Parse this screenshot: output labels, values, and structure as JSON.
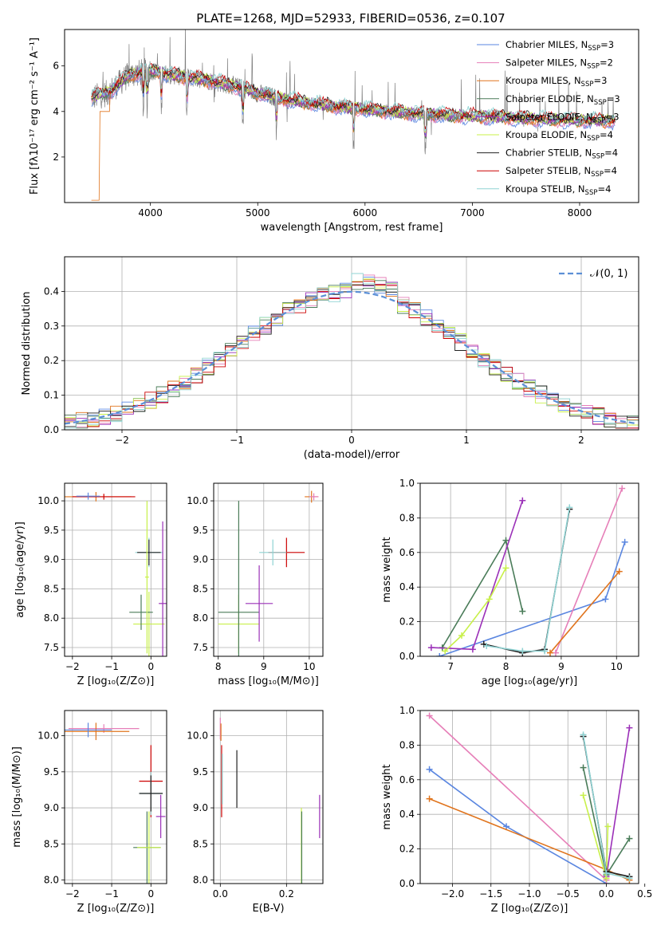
{
  "colors": {
    "chabrier_miles": "#5a86e0",
    "salpeter_miles": "#e67fb8",
    "kroupa_miles": "#e0741d",
    "chabrier_elodie": "#4a7c59",
    "salpeter_elodie": "#9b30b8",
    "kroupa_elodie": "#c8f04a",
    "chabrier_stelib": "#222222",
    "salpeter_stelib": "#cc0000",
    "kroupa_stelib": "#8fd3d3",
    "data": "#7f7f7f",
    "gaussian": "#5b8fd6"
  },
  "chart_data": [
    {
      "type": "line",
      "title": "PLATE=1268, MJD=52933, FIBERID=0536, z=0.107",
      "xlabel": "wavelength [Angstrom, rest frame]",
      "ylabel": "Flux [fλ10⁻¹⁷ erg cm⁻² s⁻¹ A⁻¹]",
      "xlim": [
        3200,
        8550
      ],
      "ylim": [
        0,
        7.6
      ],
      "xticks": [
        "4000",
        "5000",
        "6000",
        "7000",
        "8000"
      ],
      "yticks": [
        "2",
        "4",
        "6"
      ],
      "legend": "top-right",
      "continuum": {
        "x": [
          3450,
          3600,
          3800,
          4000,
          4200,
          4500,
          4800,
          5000,
          5300,
          5600,
          6000,
          6500,
          7000,
          7500,
          8000,
          8300
        ],
        "y": [
          4.6,
          4.8,
          5.6,
          5.8,
          5.6,
          5.4,
          5.1,
          4.8,
          4.5,
          4.3,
          4.1,
          3.9,
          3.8,
          3.7,
          3.6,
          3.6
        ]
      },
      "series": [
        {
          "name": "Chabrier MILES, N",
          "sub": "SSP",
          "suffix": "=3",
          "color_key": "chabrier_miles"
        },
        {
          "name": "Salpeter MILES, N",
          "sub": "SSP",
          "suffix": "=2",
          "color_key": "salpeter_miles"
        },
        {
          "name": "Kroupa MILES, N",
          "sub": "SSP",
          "suffix": "=3",
          "color_key": "kroupa_miles"
        },
        {
          "name": "Chabrier ELODIE, N",
          "sub": "SSP",
          "suffix": "=3",
          "color_key": "chabrier_elodie"
        },
        {
          "name": "Salpeter ELODIE, N",
          "sub": "SSP",
          "suffix": "=3",
          "color_key": "salpeter_elodie"
        },
        {
          "name": "Kroupa ELODIE, N",
          "sub": "SSP",
          "suffix": "=4",
          "color_key": "kroupa_elodie"
        },
        {
          "name": "Chabrier STELIB, N",
          "sub": "SSP",
          "suffix": "=4",
          "color_key": "chabrier_stelib"
        },
        {
          "name": "Salpeter STELIB, N",
          "sub": "SSP",
          "suffix": "=4",
          "color_key": "salpeter_stelib"
        },
        {
          "name": "Kroupa STELIB, N",
          "sub": "SSP",
          "suffix": "=4",
          "color_key": "kroupa_stelib"
        }
      ]
    },
    {
      "type": "bar",
      "xlabel": "(data-model)/error",
      "ylabel": "Normed distribution",
      "xlim": [
        -2.5,
        2.5
      ],
      "ylim": [
        0,
        0.5
      ],
      "xticks": [
        "−2",
        "−1",
        "0",
        "1",
        "2"
      ],
      "yticks": [
        "0.0",
        "0.1",
        "0.2",
        "0.3",
        "0.4"
      ],
      "grid": true,
      "legend": "top-right",
      "legend_label": "𝒩(0, 1)",
      "bin_width": 0.1
    },
    {
      "type": "scatter",
      "xlabel": "Z [log₁₀(Z/Z⊙)]",
      "ylabel": "age  [log₁₀(age/yr)]",
      "xlim": [
        -2.2,
        0.4
      ],
      "ylim": [
        7.35,
        10.3
      ],
      "xticks": [
        "−2",
        "−1",
        "0"
      ],
      "yticks": [
        "7.5",
        "8.0",
        "8.5",
        "9.0",
        "9.5",
        "10.0"
      ],
      "grid": true,
      "points": [
        {
          "x": -1.4,
          "y": 10.07,
          "xerr": 0.9,
          "yerr": 0.08,
          "color_key": "kroupa_miles"
        },
        {
          "x": -1.2,
          "y": 10.07,
          "xerr": 0.8,
          "yerr": 0.05,
          "color_key": "salpeter_stelib"
        },
        {
          "x": -1.6,
          "y": 10.08,
          "xerr": 0.3,
          "yerr": 0.06,
          "color_key": "chabrier_miles"
        },
        {
          "x": -0.05,
          "y": 9.12,
          "xerr": 0.35,
          "yerr": 0.25,
          "color_key": "kroupa_stelib"
        },
        {
          "x": -0.05,
          "y": 9.12,
          "xerr": 0.3,
          "yerr": 0.22,
          "color_key": "chabrier_stelib"
        },
        {
          "x": -0.05,
          "y": 7.9,
          "xerr": 0.4,
          "yerr": 0.55,
          "color_key": "kroupa_elodie"
        },
        {
          "x": -0.25,
          "y": 8.1,
          "xerr": 0.3,
          "yerr": 0.3,
          "color_key": "chabrier_elodie"
        },
        {
          "x": 0.3,
          "y": 8.25,
          "xerr": 0.1,
          "yerr": 1.4,
          "color_key": "salpeter_elodie"
        },
        {
          "x": -0.1,
          "y": 8.7,
          "xerr": 0.05,
          "yerr": 1.3,
          "color_key": "kroupa_elodie"
        }
      ]
    },
    {
      "type": "scatter",
      "xlabel": "mass [log₁₀(M/M⊙)]",
      "ylabel": "",
      "xlim": [
        7.9,
        10.3
      ],
      "ylim": [
        7.35,
        10.3
      ],
      "xticks": [
        "8",
        "9",
        "10"
      ],
      "yticks": [
        "7.5",
        "8.0",
        "8.5",
        "9.0",
        "9.5",
        "10.0"
      ],
      "grid": true,
      "points": [
        {
          "x": 10.05,
          "y": 10.07,
          "xerr": 0.15,
          "yerr": 0.1,
          "color_key": "kroupa_miles"
        },
        {
          "x": 10.1,
          "y": 10.07,
          "xerr": 0.1,
          "yerr": 0.06,
          "color_key": "salpeter_miles"
        },
        {
          "x": 9.5,
          "y": 9.12,
          "xerr": 0.4,
          "yerr": 0.25,
          "color_key": "salpeter_stelib"
        },
        {
          "x": 9.2,
          "y": 9.12,
          "xerr": 0.3,
          "yerr": 0.22,
          "color_key": "kroupa_stelib"
        },
        {
          "x": 8.45,
          "y": 7.9,
          "xerr": 0.45,
          "yerr": 0.5,
          "color_key": "kroupa_elodie"
        },
        {
          "x": 8.45,
          "y": 8.1,
          "xerr": 0.45,
          "yerr": 1.9,
          "color_key": "chabrier_elodie"
        },
        {
          "x": 8.9,
          "y": 8.25,
          "xerr": 0.3,
          "yerr": 0.65,
          "color_key": "salpeter_elodie"
        }
      ]
    },
    {
      "type": "line",
      "xlabel": "age  [log₁₀(age/yr)]",
      "ylabel": "mass weight",
      "xlim": [
        6.45,
        10.4
      ],
      "ylim": [
        0,
        1.0
      ],
      "xticks": [
        "7",
        "8",
        "9",
        "10"
      ],
      "yticks": [
        "0.0",
        "0.2",
        "0.4",
        "0.6",
        "0.8",
        "1.0"
      ],
      "grid": true,
      "series": [
        {
          "color_key": "chabrier_miles",
          "x": [
            6.8,
            9.8,
            10.15
          ],
          "y": [
            0.0,
            0.33,
            0.66
          ]
        },
        {
          "color_key": "salpeter_miles",
          "x": [
            8.9,
            10.1
          ],
          "y": [
            0.02,
            0.97
          ]
        },
        {
          "color_key": "kroupa_miles",
          "x": [
            8.8,
            10.05
          ],
          "y": [
            0.02,
            0.49
          ]
        },
        {
          "color_key": "chabrier_elodie",
          "x": [
            6.85,
            8.0,
            8.3
          ],
          "y": [
            0.05,
            0.67,
            0.26
          ]
        },
        {
          "color_key": "salpeter_elodie",
          "x": [
            6.65,
            7.4,
            8.3
          ],
          "y": [
            0.05,
            0.04,
            0.9
          ]
        },
        {
          "color_key": "kroupa_elodie",
          "x": [
            6.9,
            7.2,
            7.7,
            8.0
          ],
          "y": [
            0.03,
            0.12,
            0.33,
            0.51
          ]
        },
        {
          "color_key": "chabrier_stelib",
          "x": [
            7.6,
            8.3,
            8.7,
            9.15
          ],
          "y": [
            0.07,
            0.02,
            0.04,
            0.85
          ]
        },
        {
          "color_key": "kroupa_stelib",
          "x": [
            7.65,
            8.3,
            8.7,
            9.15
          ],
          "y": [
            0.06,
            0.03,
            0.03,
            0.86
          ]
        }
      ]
    },
    {
      "type": "scatter",
      "xlabel": "Z [log₁₀(Z/Z⊙)]",
      "ylabel": "mass [log₁₀(M/M⊙)]",
      "xlim": [
        -2.2,
        0.4
      ],
      "ylim": [
        7.95,
        10.35
      ],
      "xticks": [
        "−2",
        "−1",
        "0"
      ],
      "yticks": [
        "8.0",
        "8.5",
        "9.0",
        "9.5",
        "10.0"
      ],
      "grid": true,
      "points": [
        {
          "x": -1.2,
          "y": 10.1,
          "xerr": 0.9,
          "yerr": 0.06,
          "color_key": "salpeter_miles"
        },
        {
          "x": -1.4,
          "y": 10.06,
          "xerr": 0.85,
          "yerr": 0.12,
          "color_key": "kroupa_miles"
        },
        {
          "x": -1.6,
          "y": 10.08,
          "xerr": 0.6,
          "yerr": 0.1,
          "color_key": "chabrier_miles"
        },
        {
          "x": 0.0,
          "y": 9.37,
          "xerr": 0.3,
          "yerr": 0.5,
          "color_key": "salpeter_stelib"
        },
        {
          "x": 0.0,
          "y": 9.2,
          "xerr": 0.3,
          "yerr": 0.3,
          "color_key": "kroupa_stelib"
        },
        {
          "x": 0.0,
          "y": 9.2,
          "xerr": 0.3,
          "yerr": 0.25,
          "color_key": "chabrier_stelib"
        },
        {
          "x": 0.25,
          "y": 8.88,
          "xerr": 0.12,
          "yerr": 0.3,
          "color_key": "salpeter_elodie"
        },
        {
          "x": -0.1,
          "y": 8.45,
          "xerr": 0.35,
          "yerr": 0.5,
          "color_key": "chabrier_elodie"
        },
        {
          "x": -0.05,
          "y": 8.45,
          "xerr": 0.3,
          "yerr": 0.5,
          "color_key": "kroupa_elodie"
        }
      ]
    },
    {
      "type": "scatter",
      "xlabel": "E(B-V)",
      "ylabel": "",
      "xlim": [
        -0.02,
        0.31
      ],
      "ylim": [
        7.95,
        10.35
      ],
      "xticks": [
        "0.0",
        "0.2"
      ],
      "yticks": [
        "8.0",
        "8.5",
        "9.0",
        "9.5",
        "10.0"
      ],
      "grid": true,
      "points": [
        {
          "x": 0.0,
          "y": 10.1,
          "yerr": 0.15,
          "color_key": "salpeter_miles"
        },
        {
          "x": 0.002,
          "y": 10.05,
          "yerr": 0.12,
          "color_key": "kroupa_miles"
        },
        {
          "x": 0.004,
          "y": 9.37,
          "yerr": 0.5,
          "color_key": "salpeter_stelib"
        },
        {
          "x": 0.006,
          "y": 9.4,
          "yerr": 0.35,
          "color_key": "kroupa_stelib"
        },
        {
          "x": 0.05,
          "y": 9.4,
          "yerr": 0.4,
          "color_key": "chabrier_stelib"
        },
        {
          "x": 0.245,
          "y": 8.45,
          "yerr": 0.55,
          "color_key": "kroupa_elodie"
        },
        {
          "x": 0.246,
          "y": 8.45,
          "yerr": 0.5,
          "color_key": "chabrier_elodie"
        },
        {
          "x": 0.3,
          "y": 8.88,
          "yerr": 0.3,
          "color_key": "salpeter_elodie"
        }
      ]
    },
    {
      "type": "line",
      "xlabel": "Z [log₁₀(Z/Z⊙)]",
      "ylabel": "mass weight",
      "xlim": [
        -2.42,
        0.42
      ],
      "ylim": [
        0,
        1.0
      ],
      "xticks": [
        "−2.0",
        "−1.5",
        "−1.0",
        "−0.5",
        "0.0",
        "0.5"
      ],
      "yticks": [
        "0.0",
        "0.2",
        "0.4",
        "0.6",
        "0.8",
        "1.0"
      ],
      "grid": true,
      "series": [
        {
          "color_key": "chabrier_miles",
          "x": [
            -2.3,
            -1.3,
            0.0
          ],
          "y": [
            0.66,
            0.33,
            0.0
          ]
        },
        {
          "color_key": "salpeter_miles",
          "x": [
            -2.3,
            0.0
          ],
          "y": [
            0.97,
            0.02
          ]
        },
        {
          "color_key": "kroupa_miles",
          "x": [
            -2.3,
            0.0,
            0.3
          ],
          "y": [
            0.49,
            0.08,
            0.02
          ]
        },
        {
          "color_key": "chabrier_elodie",
          "x": [
            -0.3,
            0.0,
            0.3
          ],
          "y": [
            0.67,
            0.05,
            0.26
          ]
        },
        {
          "color_key": "salpeter_elodie",
          "x": [
            0.0,
            0.3
          ],
          "y": [
            0.04,
            0.9
          ]
        },
        {
          "color_key": "kroupa_elodie",
          "x": [
            -0.3,
            0.0,
            0.02
          ],
          "y": [
            0.51,
            0.03,
            0.33
          ]
        },
        {
          "color_key": "chabrier_stelib",
          "x": [
            -0.3,
            0.0,
            0.3
          ],
          "y": [
            0.85,
            0.07,
            0.04
          ]
        },
        {
          "color_key": "kroupa_stelib",
          "x": [
            -0.3,
            0.0,
            0.3
          ],
          "y": [
            0.86,
            0.06,
            0.03
          ]
        }
      ]
    }
  ]
}
